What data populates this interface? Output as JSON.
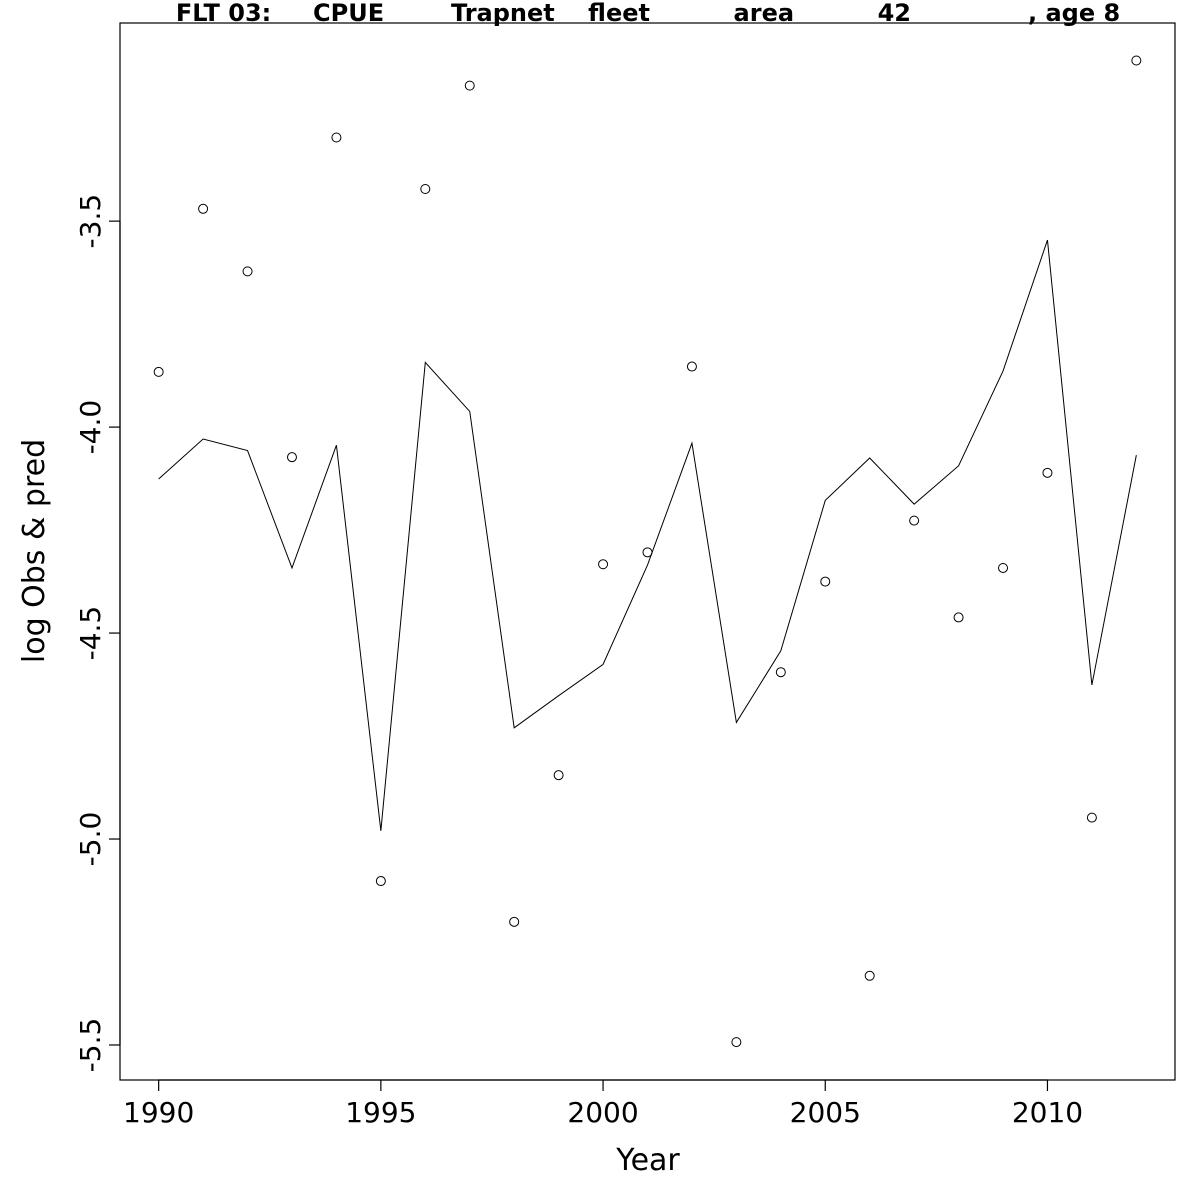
{
  "chart_data": {
    "type": "line",
    "title": "FLT 03:     CPUE        Trapnet    fleet          area          42              , age 8",
    "xlabel": "Year",
    "ylabel": "log Obs & pred",
    "xlim": [
      1989.13,
      2012.87
    ],
    "ylim": [
      -5.585,
      -3.019
    ],
    "x_ticks": [
      1990,
      1995,
      2000,
      2005,
      2010
    ],
    "y_ticks": [
      -5.5,
      -5.0,
      -4.5,
      -4.0,
      -3.5
    ],
    "x_tick_labels": [
      "1990",
      "1995",
      "2000",
      "2005",
      "2010"
    ],
    "y_tick_labels": [
      "-5.5",
      "-5.0",
      "-4.5",
      "-4.0",
      "-3.5"
    ],
    "legend": "none",
    "grid": false,
    "series": [
      {
        "marker": "open-circle",
        "x": [
          1990,
          1991,
          1992,
          1993,
          1994,
          1995,
          1996,
          1997,
          1998,
          1999,
          2000,
          2001,
          2002,
          2003,
          2004,
          2005,
          2006,
          2007,
          2008,
          2009,
          2010,
          2011,
          2012
        ],
        "values": [
          -3.866,
          -3.47,
          -3.622,
          -4.073,
          -3.297,
          -5.102,
          -3.422,
          -3.171,
          -5.201,
          -4.845,
          -4.333,
          -4.304,
          -3.853,
          -5.493,
          -4.595,
          -4.375,
          -5.332,
          -4.227,
          -4.462,
          -4.342,
          -4.111,
          -4.948,
          -3.11
        ]
      },
      {
        "marker": "line",
        "x": [
          1990,
          1991,
          1992,
          1993,
          1994,
          1995,
          1996,
          1997,
          1998,
          1999,
          2000,
          2001,
          2002,
          2003,
          2004,
          2005,
          2006,
          2007,
          2008,
          2009,
          2010,
          2011,
          2012
        ],
        "values": [
          -4.126,
          -4.029,
          -4.057,
          -4.342,
          -4.044,
          -4.98,
          -3.843,
          -3.962,
          -4.73,
          -4.652,
          -4.576,
          -4.335,
          -4.039,
          -4.717,
          -4.543,
          -4.178,
          -4.075,
          -4.187,
          -4.094,
          -3.864,
          -3.546,
          -4.626,
          -4.068
        ]
      }
    ]
  }
}
